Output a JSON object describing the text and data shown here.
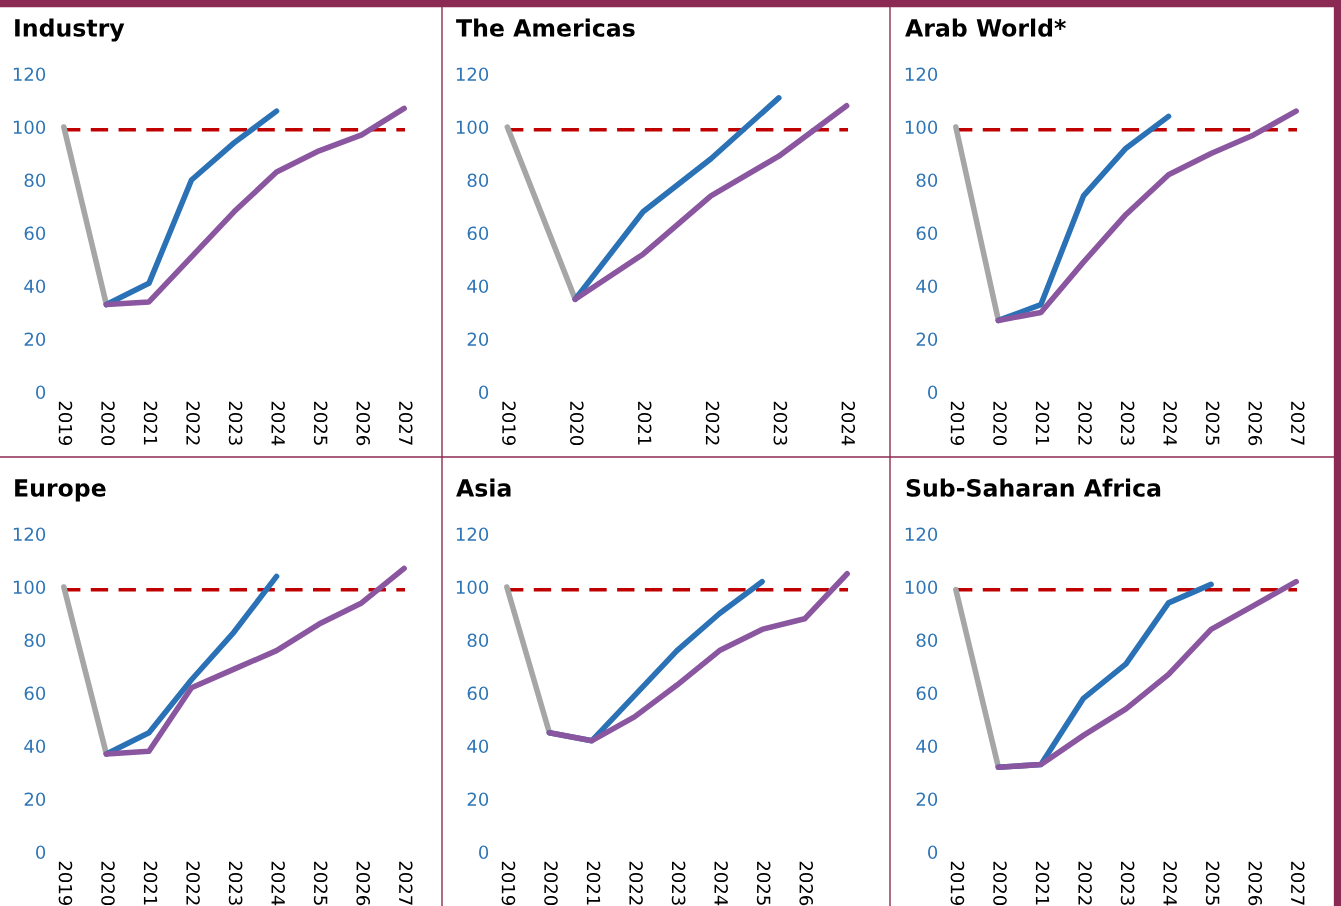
{
  "chart_data": [
    {
      "type": "line",
      "title": "Industry",
      "categories": [
        "2019",
        "2020",
        "2021",
        "2022",
        "2023",
        "2024",
        "2025",
        "2026",
        "2027"
      ],
      "ylim": [
        0,
        120
      ],
      "yticks": [
        0,
        20,
        40,
        60,
        80,
        100,
        120
      ],
      "grid": false,
      "marker": "none",
      "ref_lines": [
        {
          "axis": "y",
          "value": 99,
          "color": "#c00000",
          "line_style": "dashed"
        }
      ],
      "series": [
        {
          "color": "#a6a6a6",
          "values": [
            100,
            33,
            null,
            null,
            null,
            null,
            null,
            null,
            null
          ]
        },
        {
          "color": "#2a72b5",
          "values": [
            null,
            33,
            41,
            80,
            94,
            106,
            null,
            null,
            null
          ]
        },
        {
          "color": "#8a56a0",
          "values": [
            null,
            33,
            34,
            51,
            68,
            83,
            91,
            97,
            107
          ]
        }
      ]
    },
    {
      "type": "line",
      "title": "The Americas",
      "categories": [
        "2019",
        "2020",
        "2021",
        "2022",
        "2023",
        "2024"
      ],
      "ylim": [
        0,
        120
      ],
      "yticks": [
        0,
        20,
        40,
        60,
        80,
        100,
        120
      ],
      "grid": false,
      "marker": "none",
      "ref_lines": [
        {
          "axis": "y",
          "value": 99,
          "color": "#c00000",
          "line_style": "dashed"
        }
      ],
      "series": [
        {
          "color": "#a6a6a6",
          "values": [
            100,
            35,
            null,
            null,
            null,
            null
          ]
        },
        {
          "color": "#2a72b5",
          "values": [
            null,
            35,
            68,
            88,
            111,
            null
          ]
        },
        {
          "color": "#8a56a0",
          "values": [
            null,
            35,
            52,
            74,
            89,
            108
          ]
        }
      ]
    },
    {
      "type": "line",
      "title": "Arab World*",
      "categories": [
        "2019",
        "2020",
        "2021",
        "2022",
        "2023",
        "2024",
        "2025",
        "2026",
        "2027"
      ],
      "ylim": [
        0,
        120
      ],
      "yticks": [
        0,
        20,
        40,
        60,
        80,
        100,
        120
      ],
      "grid": false,
      "marker": "none",
      "ref_lines": [
        {
          "axis": "y",
          "value": 99,
          "color": "#c00000",
          "line_style": "dashed"
        }
      ],
      "series": [
        {
          "color": "#a6a6a6",
          "values": [
            100,
            27,
            null,
            null,
            null,
            null,
            null,
            null,
            null
          ]
        },
        {
          "color": "#2a72b5",
          "values": [
            null,
            27,
            33,
            74,
            92,
            104,
            null,
            null,
            null
          ]
        },
        {
          "color": "#8a56a0",
          "values": [
            null,
            27,
            30,
            49,
            67,
            82,
            90,
            97,
            106
          ]
        }
      ]
    },
    {
      "type": "line",
      "title": "Europe",
      "categories": [
        "2019",
        "2020",
        "2021",
        "2022",
        "2023",
        "2024",
        "2025",
        "2026",
        "2027"
      ],
      "ylim": [
        0,
        120
      ],
      "yticks": [
        0,
        20,
        40,
        60,
        80,
        100,
        120
      ],
      "grid": false,
      "marker": "none",
      "ref_lines": [
        {
          "axis": "y",
          "value": 99,
          "color": "#c00000",
          "line_style": "dashed"
        }
      ],
      "series": [
        {
          "color": "#a6a6a6",
          "values": [
            100,
            37,
            null,
            null,
            null,
            null,
            null,
            null,
            null
          ]
        },
        {
          "color": "#2a72b5",
          "values": [
            null,
            37,
            45,
            65,
            83,
            104,
            null,
            null,
            null
          ]
        },
        {
          "color": "#8a56a0",
          "values": [
            null,
            37,
            38,
            62,
            69,
            76,
            86,
            94,
            107
          ]
        }
      ]
    },
    {
      "type": "line",
      "title": "Asia",
      "categories": [
        "2019",
        "2020",
        "2021",
        "2022",
        "2023",
        "2024",
        "2025",
        "2026",
        null
      ],
      "ylim": [
        0,
        120
      ],
      "yticks": [
        0,
        20,
        40,
        60,
        80,
        100,
        120
      ],
      "grid": false,
      "marker": "none",
      "ref_lines": [
        {
          "axis": "y",
          "value": 99,
          "color": "#c00000",
          "line_style": "dashed"
        }
      ],
      "series": [
        {
          "color": "#a6a6a6",
          "values": [
            100,
            45,
            null,
            null,
            null,
            null,
            null,
            null,
            null
          ]
        },
        {
          "color": "#2a72b5",
          "values": [
            null,
            45,
            42,
            59,
            76,
            90,
            102,
            null,
            null
          ]
        },
        {
          "color": "#8a56a0",
          "values": [
            null,
            45,
            42,
            51,
            63,
            76,
            84,
            88,
            105
          ]
        }
      ]
    },
    {
      "type": "line",
      "title": "Sub-Saharan Africa",
      "categories": [
        "2019",
        "2020",
        "2021",
        "2022",
        "2023",
        "2024",
        "2025",
        "2026",
        "2027"
      ],
      "ylim": [
        0,
        120
      ],
      "yticks": [
        0,
        20,
        40,
        60,
        80,
        100,
        120
      ],
      "grid": false,
      "marker": "none",
      "ref_lines": [
        {
          "axis": "y",
          "value": 99,
          "color": "#c00000",
          "line_style": "dashed"
        }
      ],
      "series": [
        {
          "color": "#a6a6a6",
          "values": [
            99,
            32,
            null,
            null,
            null,
            null,
            null,
            null,
            null
          ]
        },
        {
          "color": "#2a72b5",
          "values": [
            null,
            32,
            33,
            58,
            71,
            94,
            101,
            null,
            null
          ]
        },
        {
          "color": "#8a56a0",
          "values": [
            null,
            32,
            33,
            44,
            54,
            67,
            84,
            93,
            102
          ]
        }
      ]
    }
  ]
}
